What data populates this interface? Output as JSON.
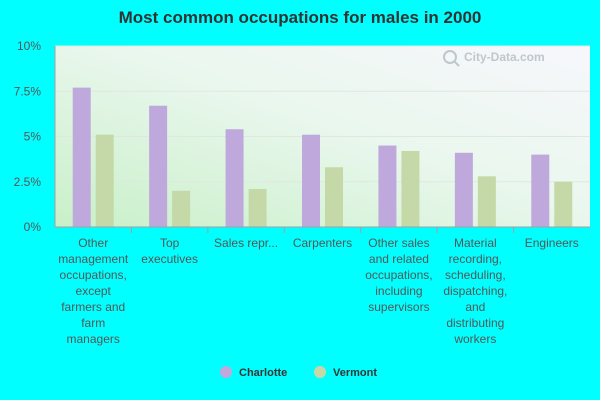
{
  "chart_data": {
    "type": "bar",
    "title": "Most common occupations for males in 2000",
    "xlabel": "",
    "ylabel": "",
    "ylim": [
      0,
      10
    ],
    "yticks": [
      "0%",
      "2.5%",
      "5%",
      "7.5%",
      "10%"
    ],
    "ytick_values": [
      0,
      2.5,
      5,
      7.5,
      10
    ],
    "categories": [
      [
        "Other",
        "management",
        "occupations,",
        "except",
        "farmers and",
        "farm",
        "managers"
      ],
      [
        "Top",
        "executives"
      ],
      [
        "Sales repr..."
      ],
      [
        "Carpenters"
      ],
      [
        "Other sales",
        "and related",
        "occupations,",
        "including",
        "supervisors"
      ],
      [
        "Material",
        "recording,",
        "scheduling,",
        "dispatching,",
        "and",
        "distributing",
        "workers"
      ],
      [
        "Engineers"
      ]
    ],
    "series": [
      {
        "name": "Charlotte",
        "color": "#bfa8dc",
        "values": [
          7.7,
          6.7,
          5.4,
          5.1,
          4.5,
          4.1,
          4.0
        ]
      },
      {
        "name": "Vermont",
        "color": "#c5d9a8",
        "values": [
          5.1,
          2.0,
          2.1,
          3.3,
          4.2,
          2.8,
          2.5
        ]
      }
    ],
    "legend_position": "bottom",
    "grid": true
  },
  "watermark": {
    "text": "City-Data.com",
    "icon": "magnifier-icon"
  }
}
